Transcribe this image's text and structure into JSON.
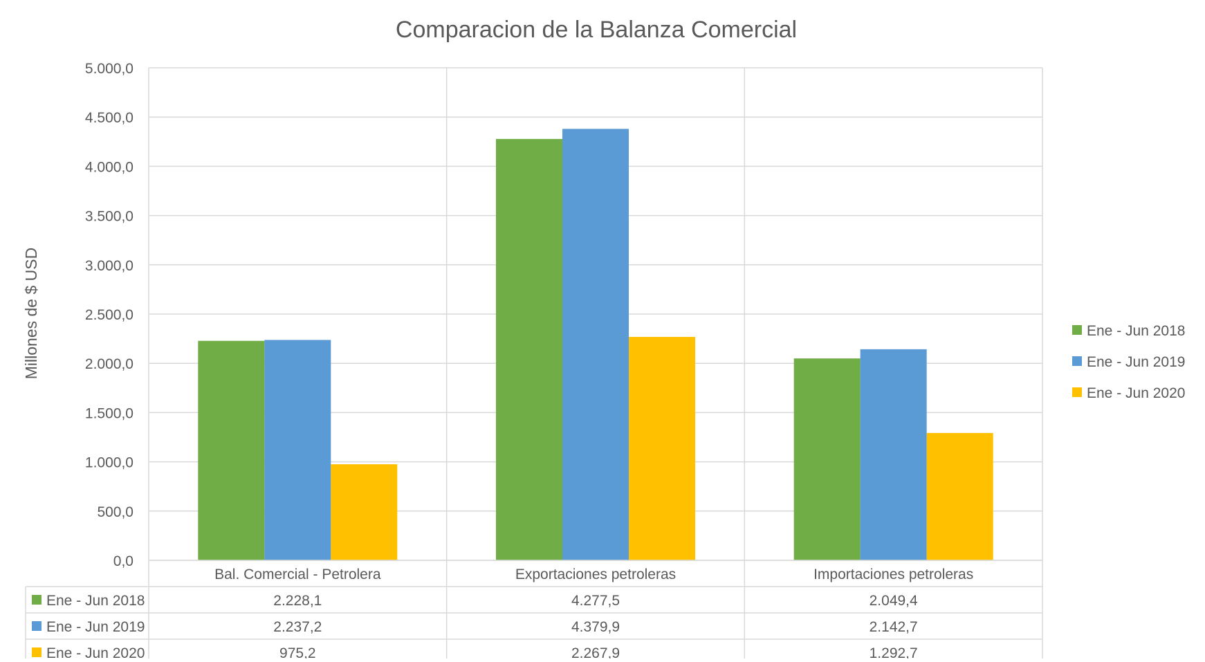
{
  "chart_data": {
    "type": "bar",
    "title": "Comparacion de la Balanza Comercial",
    "ylabel": "Millones de $ USD",
    "xlabel": "",
    "categories": [
      "Bal. Comercial - Petrolera",
      "Exportaciones petroleras",
      "Importaciones petroleras"
    ],
    "series": [
      {
        "name": "Ene - Jun 2018",
        "color": "#70AD47",
        "values": [
          2228.1,
          4277.5,
          2049.4
        ],
        "labels": [
          "2.228,1",
          "4.277,5",
          "2.049,4"
        ]
      },
      {
        "name": "Ene - Jun 2019",
        "color": "#5B9BD5",
        "values": [
          2237.2,
          4379.9,
          2142.7
        ],
        "labels": [
          "2.237,2",
          "4.379,9",
          "2.142,7"
        ]
      },
      {
        "name": "Ene - Jun 2020",
        "color": "#FFC000",
        "values": [
          975.2,
          2267.9,
          1292.7
        ],
        "labels": [
          "975,2",
          "2.267,9",
          "1.292,7"
        ]
      }
    ],
    "ylim": [
      0,
      5000
    ],
    "yticks": [
      0,
      500,
      1000,
      1500,
      2000,
      2500,
      3000,
      3500,
      4000,
      4500,
      5000
    ],
    "ytick_labels": [
      "0,0",
      "500,0",
      "1.000,0",
      "1.500,0",
      "2.000,0",
      "2.500,0",
      "3.000,0",
      "3.500,0",
      "4.000,0",
      "4.500,0",
      "5.000,0"
    ],
    "grid": true,
    "legend_position": "right",
    "data_table": true
  }
}
